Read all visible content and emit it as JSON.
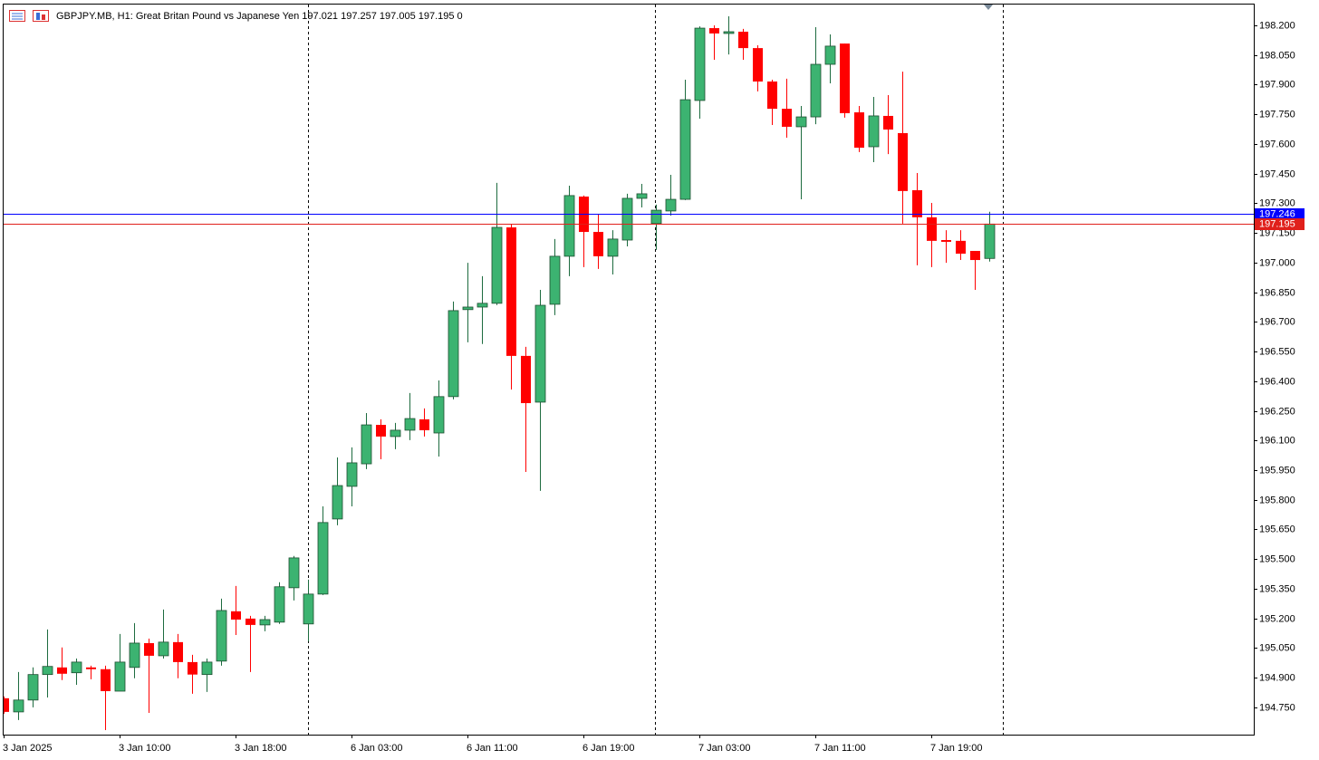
{
  "chart_data": {
    "type": "candlestick",
    "title": "GBPJPY.MB, H1:  Great Britan Pound vs Japanese Yen  197.021 197.257 197.005 197.195  0",
    "categories": [
      "3 Jan 2025",
      null,
      null,
      null,
      null,
      null,
      null,
      null,
      "3 Jan 10:00",
      null,
      null,
      null,
      null,
      null,
      null,
      null,
      "3 Jan 18:00",
      null,
      null,
      null,
      null,
      null,
      null,
      null,
      "6 Jan 03:00",
      null,
      null,
      null,
      null,
      null,
      null,
      null,
      "6 Jan 11:00",
      null,
      null,
      null,
      null,
      null,
      null,
      null,
      "6 Jan 19:00",
      null,
      null,
      null,
      null,
      null,
      null,
      null,
      "7 Jan 03:00",
      null,
      null,
      null,
      null,
      null,
      null,
      null,
      "7 Jan 11:00",
      null,
      null,
      null,
      null,
      null,
      null,
      null,
      "7 Jan 19:00",
      null,
      null,
      null,
      null
    ],
    "open": [
      194.796,
      194.727,
      194.787,
      194.916,
      194.952,
      194.925,
      194.952,
      194.943,
      194.832,
      194.952,
      195.075,
      195.011,
      195.08,
      194.979,
      194.916,
      194.984,
      195.236,
      195.199,
      195.167,
      195.181,
      195.355,
      195.172,
      195.323,
      195.703,
      195.868,
      195.982,
      196.179,
      196.12,
      196.152,
      196.207,
      196.138,
      196.322,
      196.762,
      196.775,
      196.794,
      197.178,
      196.528,
      196.294,
      196.789,
      197.032,
      197.334,
      197.155,
      197.032,
      197.114,
      197.325,
      197.197,
      197.261,
      197.32,
      197.82,
      198.186,
      198.159,
      198.168,
      198.085,
      197.916,
      197.778,
      197.687,
      197.737,
      198.003,
      198.108,
      197.76,
      197.586,
      197.742,
      197.655,
      197.366,
      197.229,
      197.114,
      197.11,
      197.059,
      197.021
    ],
    "high": [
      194.805,
      194.929,
      194.952,
      195.144,
      195.053,
      194.997,
      194.961,
      194.961,
      195.121,
      195.176,
      195.098,
      195.245,
      195.121,
      195.016,
      194.997,
      195.3,
      195.364,
      195.213,
      195.213,
      195.383,
      195.516,
      195.396,
      195.767,
      196.014,
      196.065,
      196.239,
      196.207,
      196.189,
      196.34,
      196.262,
      196.404,
      196.803,
      196.999,
      196.931,
      197.403,
      197.192,
      196.574,
      196.862,
      197.119,
      197.389,
      197.339,
      197.247,
      197.164,
      197.348,
      197.398,
      197.293,
      197.444,
      197.925,
      198.195,
      198.2,
      198.246,
      198.182,
      198.099,
      197.925,
      197.93,
      197.792,
      198.191,
      198.154,
      198.108,
      197.792,
      197.838,
      197.847,
      197.966,
      197.453,
      197.302,
      197.164,
      197.164,
      197.059,
      197.257
    ],
    "low": [
      194.718,
      194.686,
      194.75,
      194.8,
      194.888,
      194.864,
      194.892,
      194.635,
      194.832,
      194.897,
      194.722,
      194.997,
      194.897,
      194.819,
      194.828,
      194.961,
      195.116,
      194.929,
      195.135,
      195.172,
      195.291,
      195.084,
      195.318,
      195.671,
      195.767,
      195.955,
      196.005,
      196.056,
      196.102,
      196.12,
      196.019,
      196.308,
      196.597,
      196.588,
      196.785,
      196.358,
      195.941,
      195.845,
      196.734,
      196.931,
      196.977,
      196.968,
      196.94,
      197.082,
      197.279,
      197.064,
      197.238,
      197.316,
      197.728,
      198.026,
      198.053,
      198.026,
      197.866,
      197.696,
      197.632,
      197.32,
      197.7,
      197.907,
      197.733,
      197.559,
      197.508,
      197.549,
      197.197,
      196.986,
      196.977,
      196.999,
      197.013,
      196.862,
      197.005
    ],
    "close": [
      194.727,
      194.787,
      194.916,
      194.957,
      194.92,
      194.979,
      194.943,
      194.832,
      194.979,
      195.075,
      195.011,
      195.08,
      194.979,
      194.916,
      194.979,
      195.24,
      195.194,
      195.167,
      195.194,
      195.36,
      195.506,
      195.323,
      195.685,
      195.872,
      195.987,
      196.179,
      196.12,
      196.152,
      196.211,
      196.152,
      196.322,
      196.757,
      196.775,
      196.794,
      197.178,
      196.528,
      196.289,
      196.784,
      197.032,
      197.339,
      197.155,
      197.032,
      197.119,
      197.325,
      197.348,
      197.265,
      197.32,
      197.824,
      198.186,
      198.159,
      198.168,
      198.085,
      197.916,
      197.778,
      197.687,
      197.737,
      198.003,
      198.095,
      197.756,
      197.581,
      197.742,
      197.673,
      197.362,
      197.229,
      197.11,
      197.105,
      197.045,
      197.013,
      197.195
    ],
    "up_color": "#3cb371",
    "down_color": "#ff0000",
    "ask": {
      "value": 197.246,
      "color": "#0000ff"
    },
    "bid": {
      "value": 197.195,
      "color": "#e0201b"
    },
    "ylim": [
      194.612,
      198.31
    ],
    "yticks": [
      {
        "value": 194.75,
        "label": "194.750"
      },
      {
        "value": 194.9,
        "label": "194.900"
      },
      {
        "value": 195.05,
        "label": "195.050"
      },
      {
        "value": 195.2,
        "label": "195.200"
      },
      {
        "value": 195.35,
        "label": "195.350"
      },
      {
        "value": 195.5,
        "label": "195.500"
      },
      {
        "value": 195.65,
        "label": "195.650"
      },
      {
        "value": 195.8,
        "label": "195.800"
      },
      {
        "value": 195.95,
        "label": "195.950"
      },
      {
        "value": 196.1,
        "label": "196.100"
      },
      {
        "value": 196.25,
        "label": "196.250"
      },
      {
        "value": 196.4,
        "label": "196.400"
      },
      {
        "value": 196.55,
        "label": "196.550"
      },
      {
        "value": 196.7,
        "label": "196.700"
      },
      {
        "value": 196.85,
        "label": "196.850"
      },
      {
        "value": 197.0,
        "label": "197.000"
      },
      {
        "value": 197.15,
        "label": "197.150"
      },
      {
        "value": 197.3,
        "label": "197.300"
      },
      {
        "value": 197.45,
        "label": "197.450"
      },
      {
        "value": 197.6,
        "label": "197.600"
      },
      {
        "value": 197.75,
        "label": "197.750"
      },
      {
        "value": 197.9,
        "label": "197.900"
      },
      {
        "value": 198.05,
        "label": "198.050"
      },
      {
        "value": 198.2,
        "label": "198.200"
      }
    ],
    "grid": false
  }
}
